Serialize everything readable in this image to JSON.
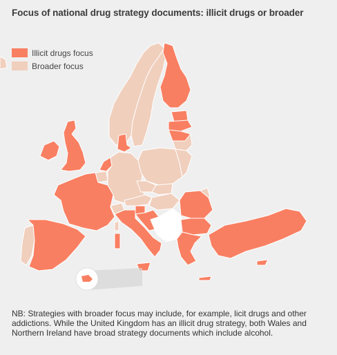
{
  "title": "Focus of national drug strategy documents: illicit drugs or broader",
  "legend": {
    "items": [
      {
        "label": "Illicit drugs focus",
        "color": "#f97f62"
      },
      {
        "label": "Broader focus",
        "color": "#f0cfbd"
      }
    ]
  },
  "colors": {
    "illicit": "#f97f62",
    "broader": "#f0cfbd",
    "no_data": "#ffffff",
    "border": "#ffffff",
    "background": "#efefef"
  },
  "map": {
    "illicit_focus": [
      "Finland",
      "Estonia",
      "Latvia",
      "Lithuania",
      "Denmark",
      "United Kingdom",
      "Ireland",
      "Netherlands",
      "Spain",
      "France",
      "Italy",
      "Romania",
      "Bulgaria",
      "Greece",
      "Cyprus",
      "Turkey",
      "Slovenia",
      "Croatia",
      "Malta"
    ],
    "broader_focus": [
      "Norway",
      "Sweden",
      "Iceland",
      "Portugal",
      "Belgium",
      "Luxembourg",
      "Germany",
      "Poland",
      "Czechia",
      "Slovakia",
      "Austria",
      "Hungary"
    ],
    "no_data": [
      "Western Balkans"
    ]
  },
  "note": "NB: Strategies with broader focus may include, for example, licit drugs and other addictions. While the United Kingdom has an illicit drug strategy, both Wales and Northern Ireland have broad strategy documents which include alcohol."
}
